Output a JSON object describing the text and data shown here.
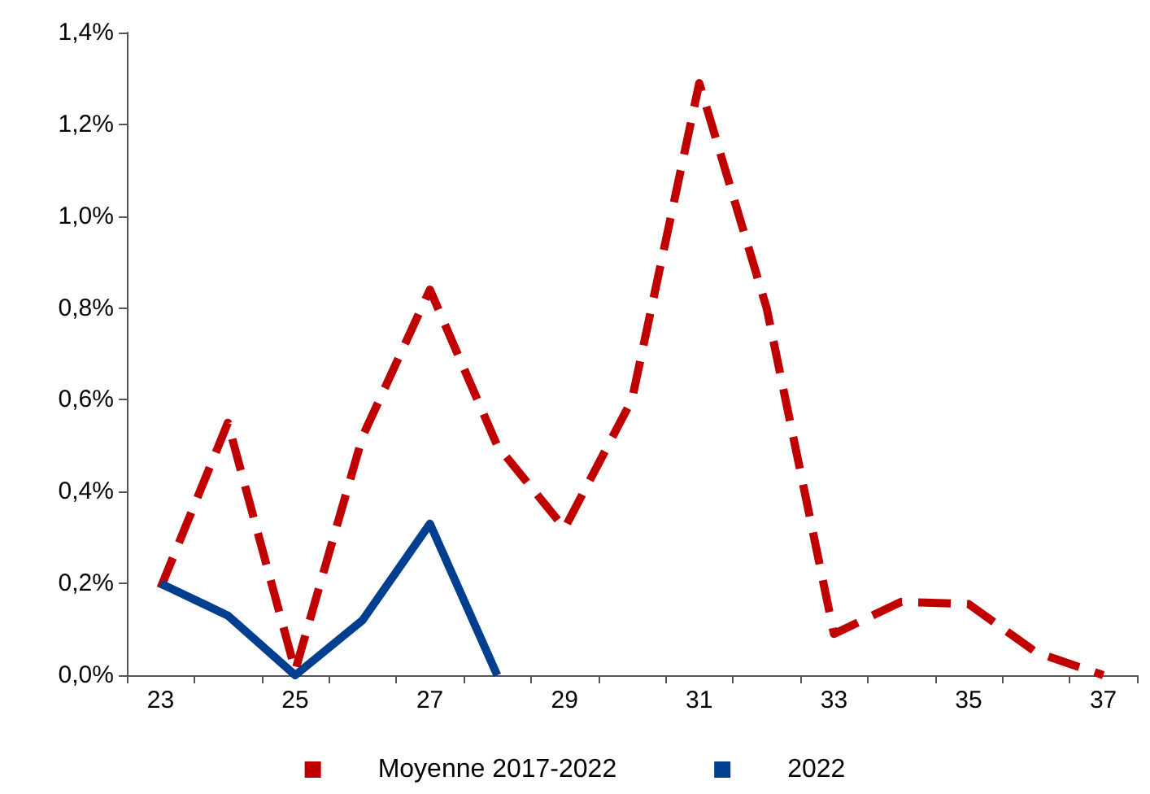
{
  "chart_data": {
    "type": "line",
    "categories": [
      "23",
      null,
      "25",
      null,
      "27",
      null,
      "29",
      null,
      "31",
      null,
      "33",
      null,
      "35",
      null,
      "37"
    ],
    "series": [
      {
        "name": "Moyenne 2017-2022",
        "color": "#c00000",
        "line_style": "dashed",
        "values": [
          0.19,
          0.55,
          0.01,
          0.52,
          0.84,
          0.5,
          0.32,
          0.6,
          1.29,
          0.8,
          0.09,
          0.16,
          0.155,
          0.05,
          0.0
        ]
      },
      {
        "name": "2022",
        "color": "#003f8f",
        "line_style": "solid",
        "values": [
          0.2,
          0.13,
          0.0,
          0.12,
          0.33,
          0.0,
          null,
          null,
          null,
          null,
          null,
          null,
          null,
          null,
          null
        ]
      }
    ],
    "ylim": [
      0,
      1.4
    ],
    "yticks": [
      {
        "value": 0,
        "label": "0,0%"
      },
      {
        "value": 0.2,
        "label": "0,2%"
      },
      {
        "value": 0.4,
        "label": "0,4%"
      },
      {
        "value": 0.6,
        "label": "0,6%"
      },
      {
        "value": 0.8,
        "label": "0,8%"
      },
      {
        "value": 1.0,
        "label": "1,0%"
      },
      {
        "value": 1.2,
        "label": "1,2%"
      },
      {
        "value": 1.4,
        "label": "1,4%"
      }
    ],
    "grid": false,
    "legend": "bottom",
    "marker": "none"
  }
}
